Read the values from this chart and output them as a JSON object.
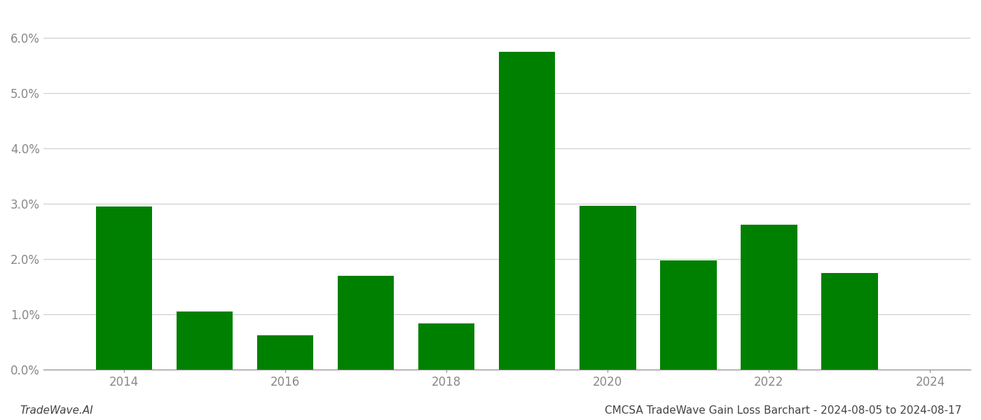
{
  "years": [
    2014,
    2015,
    2016,
    2017,
    2018,
    2019,
    2020,
    2021,
    2022,
    2023
  ],
  "values": [
    0.0295,
    0.0105,
    0.0062,
    0.017,
    0.0083,
    0.0575,
    0.0297,
    0.0198,
    0.0262,
    0.0175
  ],
  "bar_color": "#008000",
  "ylim": [
    0,
    0.065
  ],
  "yticks": [
    0.0,
    0.01,
    0.02,
    0.03,
    0.04,
    0.05,
    0.06
  ],
  "xlabel": "",
  "ylabel": "",
  "title": "",
  "footer_left": "TradeWave.AI",
  "footer_right": "CMCSA TradeWave Gain Loss Barchart - 2024-08-05 to 2024-08-17",
  "background_color": "#ffffff",
  "grid_color": "#cccccc",
  "tick_label_color": "#888888",
  "footer_fontsize": 11,
  "bar_width": 0.7,
  "xlim": [
    2013.0,
    2024.5
  ],
  "xticks": [
    2014,
    2016,
    2018,
    2020,
    2022,
    2024
  ]
}
